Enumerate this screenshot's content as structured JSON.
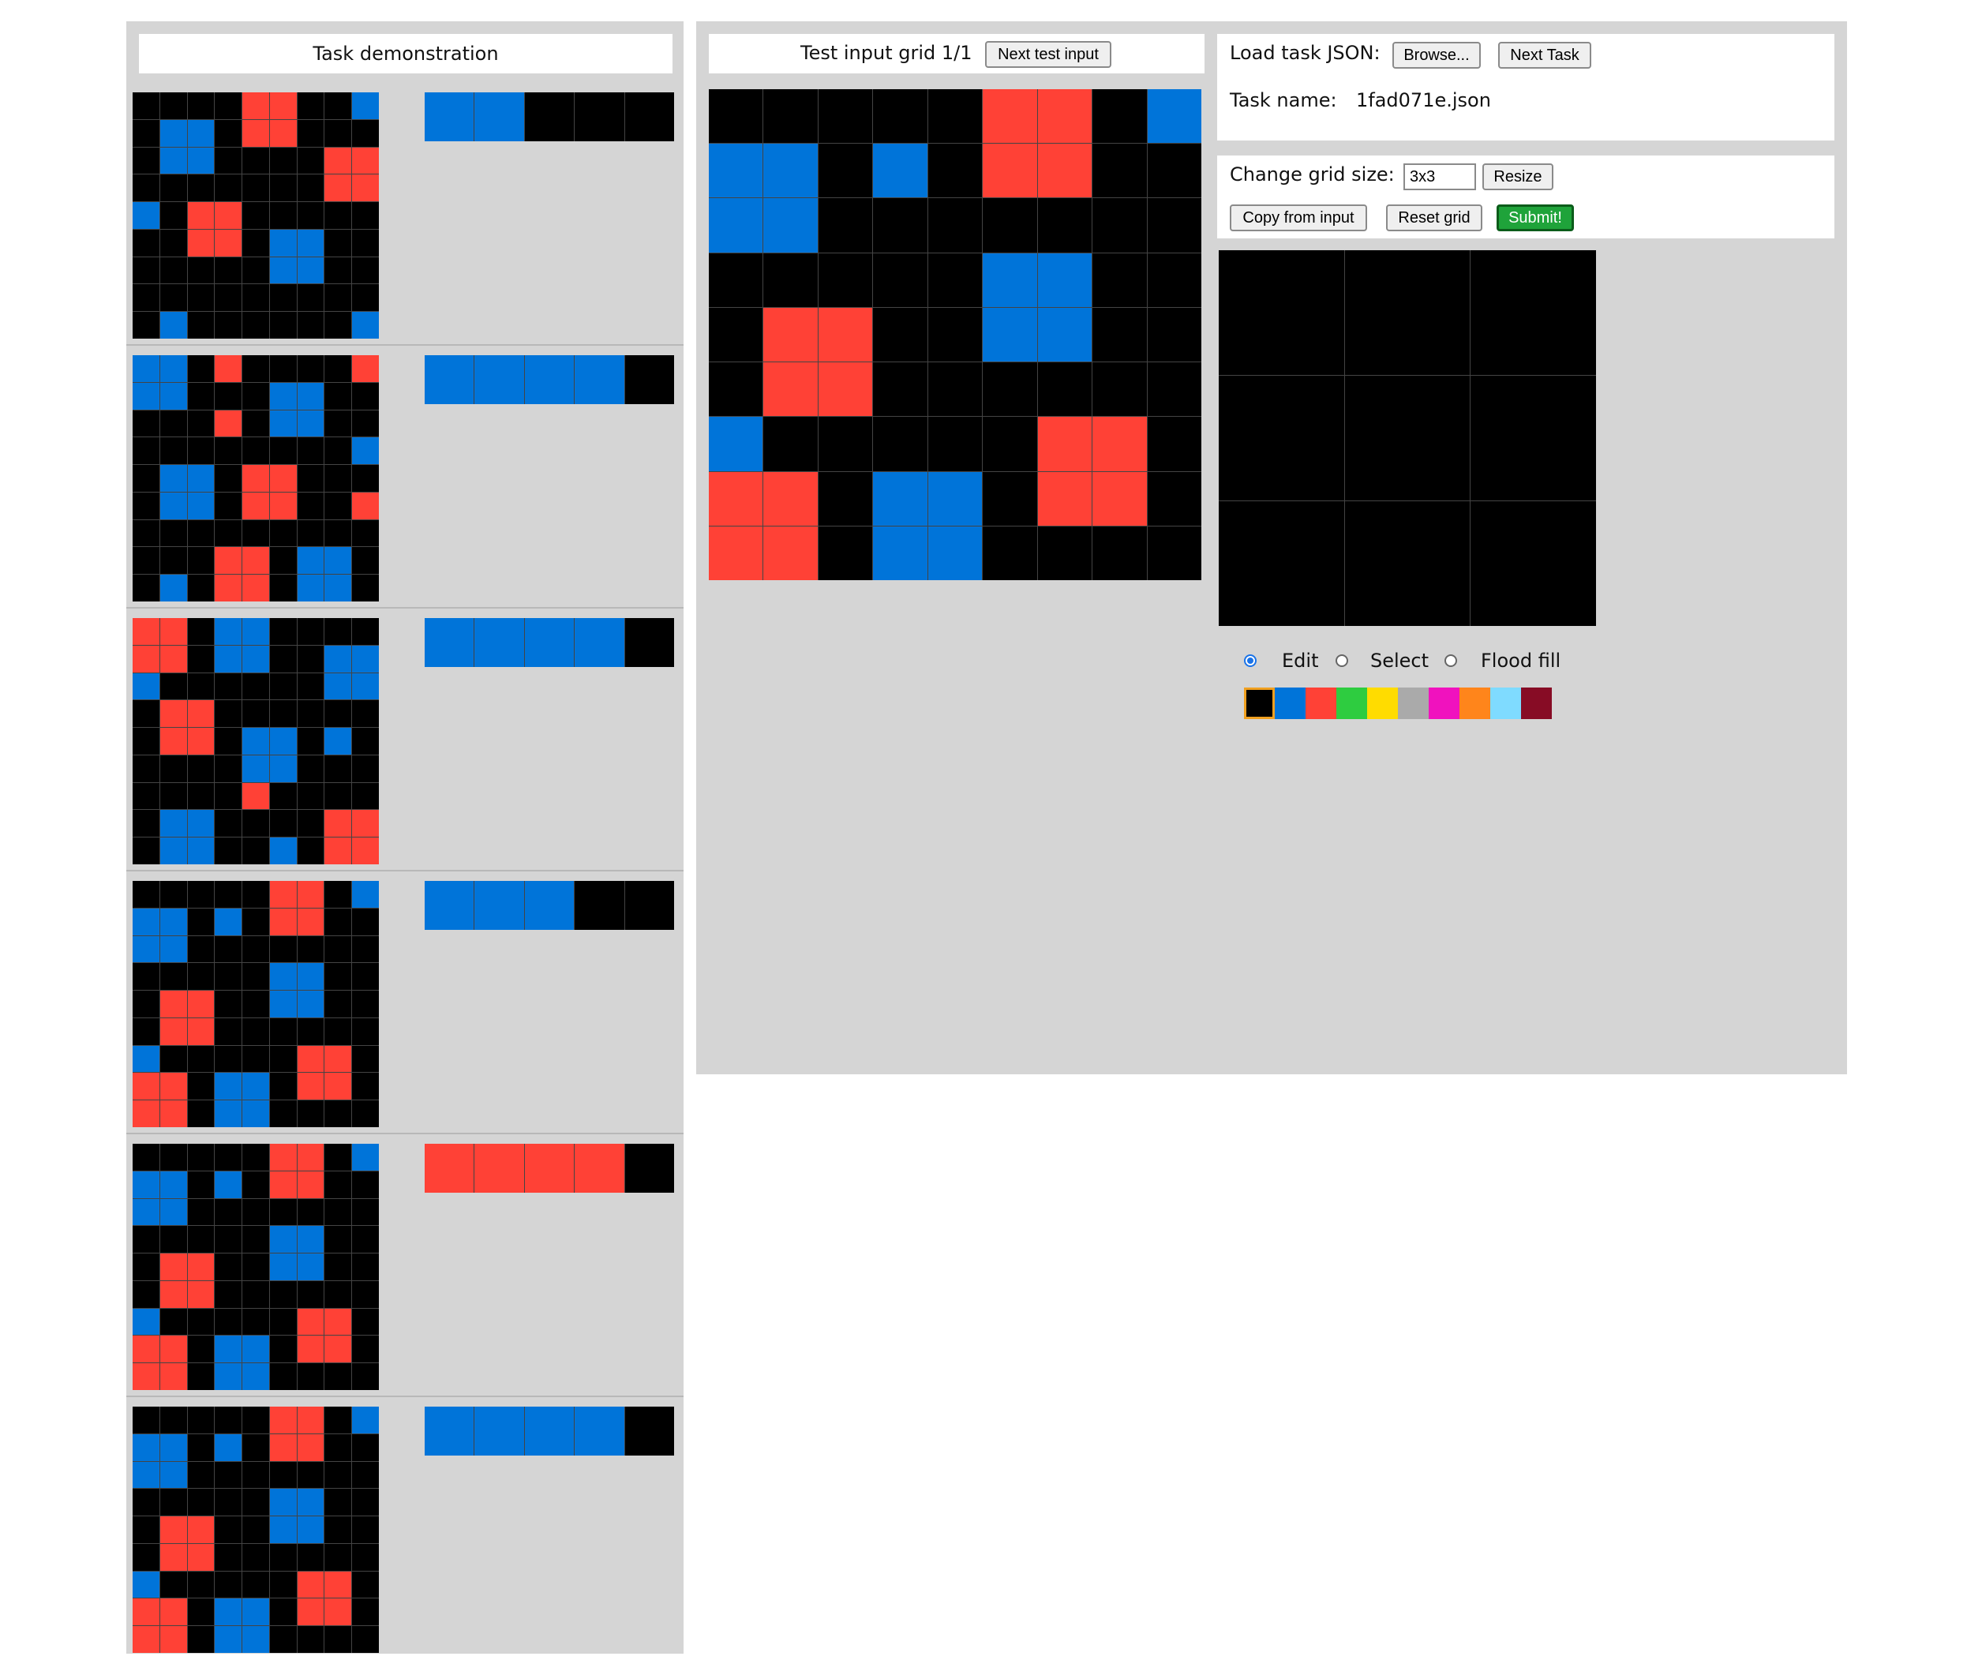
{
  "colors": {
    "0": "#000000",
    "1": "#0074d9",
    "2": "#ff4136",
    "3": "#2ecc40",
    "4": "#ffdc00",
    "5": "#aaaaaa",
    "6": "#f012be",
    "7": "#ff851b",
    "8": "#7fdbff",
    "9": "#870c25"
  },
  "demo": {
    "title": "Task demonstration",
    "pairs": [
      {
        "input": [
          [
            0,
            0,
            0,
            0,
            2,
            2,
            0,
            0,
            1
          ],
          [
            0,
            1,
            1,
            0,
            2,
            2,
            0,
            0,
            0
          ],
          [
            0,
            1,
            1,
            0,
            0,
            0,
            0,
            2,
            2
          ],
          [
            0,
            0,
            0,
            0,
            0,
            0,
            0,
            2,
            2
          ],
          [
            1,
            0,
            2,
            2,
            0,
            0,
            0,
            0,
            0
          ],
          [
            0,
            0,
            2,
            2,
            0,
            1,
            1,
            0,
            0
          ],
          [
            0,
            0,
            0,
            0,
            0,
            1,
            1,
            0,
            0
          ],
          [
            0,
            0,
            0,
            0,
            0,
            0,
            0,
            0,
            0
          ],
          [
            0,
            1,
            0,
            0,
            0,
            0,
            0,
            0,
            1
          ]
        ],
        "output": [
          [
            1,
            1,
            0,
            0,
            0
          ]
        ]
      },
      {
        "input": [
          [
            1,
            1,
            0,
            2,
            0,
            0,
            0,
            0,
            2
          ],
          [
            1,
            1,
            0,
            0,
            0,
            1,
            1,
            0,
            0
          ],
          [
            0,
            0,
            0,
            2,
            0,
            1,
            1,
            0,
            0
          ],
          [
            0,
            0,
            0,
            0,
            0,
            0,
            0,
            0,
            1
          ],
          [
            0,
            1,
            1,
            0,
            2,
            2,
            0,
            0,
            0
          ],
          [
            0,
            1,
            1,
            0,
            2,
            2,
            0,
            0,
            2
          ],
          [
            0,
            0,
            0,
            0,
            0,
            0,
            0,
            0,
            0
          ],
          [
            0,
            0,
            0,
            2,
            2,
            0,
            1,
            1,
            0
          ],
          [
            0,
            1,
            0,
            2,
            2,
            0,
            1,
            1,
            0
          ]
        ],
        "output": [
          [
            1,
            1,
            1,
            1,
            0
          ]
        ]
      },
      {
        "input": [
          [
            2,
            2,
            0,
            1,
            1,
            0,
            0,
            0,
            0
          ],
          [
            2,
            2,
            0,
            1,
            1,
            0,
            0,
            1,
            1
          ],
          [
            1,
            0,
            0,
            0,
            0,
            0,
            0,
            1,
            1
          ],
          [
            0,
            2,
            2,
            0,
            0,
            0,
            0,
            0,
            0
          ],
          [
            0,
            2,
            2,
            0,
            1,
            1,
            0,
            1,
            0
          ],
          [
            0,
            0,
            0,
            0,
            1,
            1,
            0,
            0,
            0
          ],
          [
            0,
            0,
            0,
            0,
            2,
            0,
            0,
            0,
            0
          ],
          [
            0,
            1,
            1,
            0,
            0,
            0,
            0,
            2,
            2
          ],
          [
            0,
            1,
            1,
            0,
            0,
            1,
            0,
            2,
            2
          ]
        ],
        "output": [
          [
            1,
            1,
            1,
            1,
            0
          ]
        ]
      },
      {
        "input": [
          [
            0,
            0,
            0,
            0,
            0,
            2,
            2,
            0,
            1
          ],
          [
            1,
            1,
            0,
            1,
            0,
            2,
            2,
            0,
            0
          ],
          [
            1,
            1,
            0,
            0,
            0,
            0,
            0,
            0,
            0
          ],
          [
            0,
            0,
            0,
            0,
            0,
            1,
            1,
            0,
            0
          ],
          [
            0,
            2,
            2,
            0,
            0,
            1,
            1,
            0,
            0
          ],
          [
            0,
            2,
            2,
            0,
            0,
            0,
            0,
            0,
            0
          ],
          [
            1,
            0,
            0,
            0,
            0,
            0,
            2,
            2,
            0
          ],
          [
            2,
            2,
            0,
            1,
            1,
            0,
            2,
            2,
            0
          ],
          [
            2,
            2,
            0,
            1,
            1,
            0,
            0,
            0,
            0
          ]
        ],
        "output": [
          [
            1,
            1,
            1,
            0,
            0
          ]
        ]
      },
      {
        "input": [
          [
            0,
            0,
            0,
            0,
            0,
            2,
            2,
            0,
            1
          ],
          [
            1,
            1,
            0,
            1,
            0,
            2,
            2,
            0,
            0
          ],
          [
            1,
            1,
            0,
            0,
            0,
            0,
            0,
            0,
            0
          ],
          [
            0,
            0,
            0,
            0,
            0,
            1,
            1,
            0,
            0
          ],
          [
            0,
            2,
            2,
            0,
            0,
            1,
            1,
            0,
            0
          ],
          [
            0,
            2,
            2,
            0,
            0,
            0,
            0,
            0,
            0
          ],
          [
            1,
            0,
            0,
            0,
            0,
            0,
            2,
            2,
            0
          ],
          [
            2,
            2,
            0,
            1,
            1,
            0,
            2,
            2,
            0
          ],
          [
            2,
            2,
            0,
            1,
            1,
            0,
            0,
            0,
            0
          ]
        ],
        "output": [
          [
            2,
            2,
            2,
            2,
            0
          ]
        ]
      },
      {
        "input": [
          [
            0,
            0,
            0,
            0,
            0,
            2,
            2,
            0,
            1
          ],
          [
            1,
            1,
            0,
            1,
            0,
            2,
            2,
            0,
            0
          ],
          [
            1,
            1,
            0,
            0,
            0,
            0,
            0,
            0,
            0
          ],
          [
            0,
            0,
            0,
            0,
            0,
            1,
            1,
            0,
            0
          ],
          [
            0,
            2,
            2,
            0,
            0,
            1,
            1,
            0,
            0
          ],
          [
            0,
            2,
            2,
            0,
            0,
            0,
            0,
            0,
            0
          ],
          [
            1,
            0,
            0,
            0,
            0,
            0,
            2,
            2,
            0
          ],
          [
            2,
            2,
            0,
            1,
            1,
            0,
            2,
            2,
            0
          ],
          [
            2,
            2,
            0,
            1,
            1,
            0,
            0,
            0,
            0
          ]
        ],
        "output": [
          [
            1,
            1,
            1,
            1,
            0
          ]
        ]
      }
    ]
  },
  "test": {
    "title": "Test input grid 1/1",
    "next_label": "Next test input",
    "grid": [
      [
        0,
        0,
        0,
        0,
        0,
        2,
        2,
        0,
        1
      ],
      [
        1,
        1,
        0,
        1,
        0,
        2,
        2,
        0,
        0
      ],
      [
        1,
        1,
        0,
        0,
        0,
        0,
        0,
        0,
        0
      ],
      [
        0,
        0,
        0,
        0,
        0,
        1,
        1,
        0,
        0
      ],
      [
        0,
        2,
        2,
        0,
        0,
        1,
        1,
        0,
        0
      ],
      [
        0,
        2,
        2,
        0,
        0,
        0,
        0,
        0,
        0
      ],
      [
        1,
        0,
        0,
        0,
        0,
        0,
        2,
        2,
        0
      ],
      [
        2,
        2,
        0,
        1,
        1,
        0,
        2,
        2,
        0
      ],
      [
        2,
        2,
        0,
        1,
        1,
        0,
        0,
        0,
        0
      ]
    ]
  },
  "controls": {
    "load_label": "Load task JSON:",
    "browse_label": "Browse...",
    "next_task_label": "Next Task",
    "task_name_label": "Task name:",
    "task_name_value": "1fad071e.json",
    "grid_size_label": "Change grid size:",
    "grid_size_value": "3x3",
    "resize_label": "Resize",
    "copy_label": "Copy from input",
    "reset_label": "Reset grid",
    "submit_label": "Submit!"
  },
  "output_grid": [
    [
      0,
      0,
      0
    ],
    [
      0,
      0,
      0
    ],
    [
      0,
      0,
      0
    ]
  ],
  "tools": {
    "edit": "Edit",
    "select": "Select",
    "flood": "Flood fill",
    "selected": "edit"
  },
  "palette": [
    "#000000",
    "#0074d9",
    "#ff4136",
    "#2ecc40",
    "#ffdc00",
    "#aaaaaa",
    "#f012be",
    "#ff851b",
    "#7fdbff",
    "#870c25"
  ],
  "selected_color_index": 0
}
